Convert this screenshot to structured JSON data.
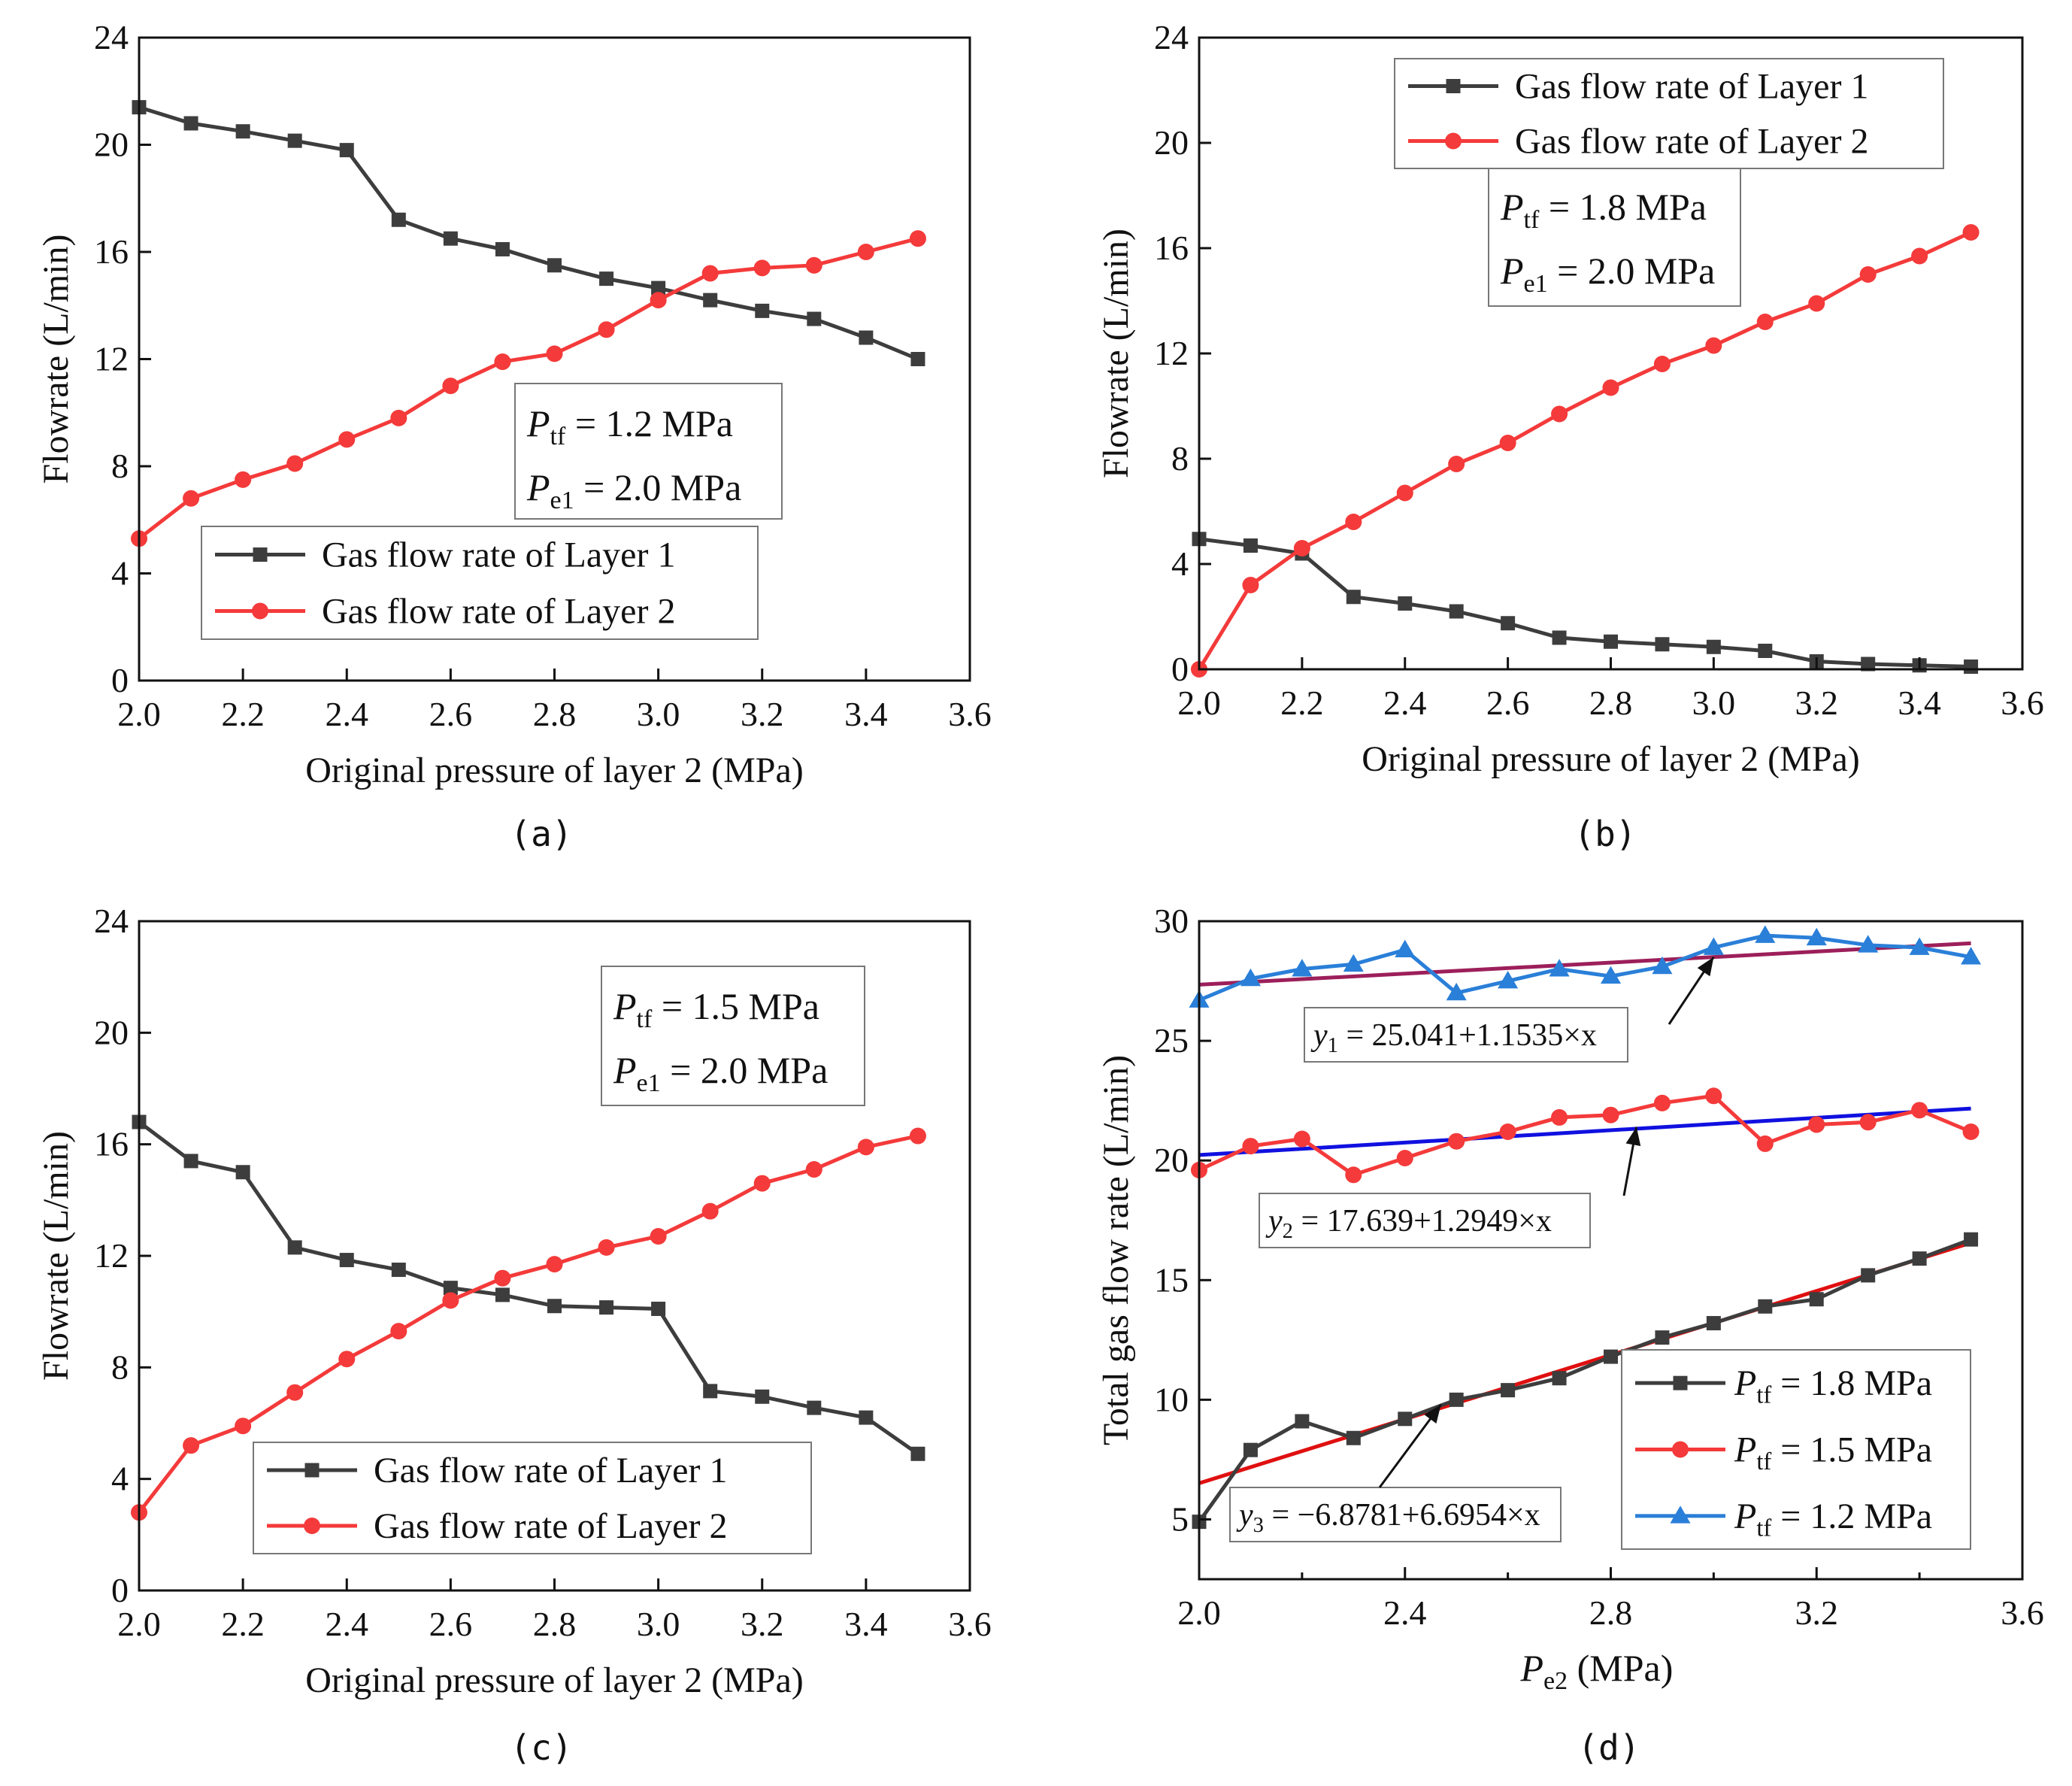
{
  "chart_data": [
    {
      "id": "a",
      "type": "line",
      "caption": "(a)",
      "xlabel": "Original pressure of layer 2 (MPa)",
      "ylabel": "Flowrate (L/min)",
      "xlim": [
        2.0,
        3.6
      ],
      "ylim": [
        0,
        24
      ],
      "xticks": [
        "2.0",
        "2.2",
        "2.4",
        "2.6",
        "2.8",
        "3.0",
        "3.2",
        "3.4",
        "3.6"
      ],
      "yticks": [
        "0",
        "4",
        "8",
        "12",
        "16",
        "20",
        "24"
      ],
      "x": [
        2.0,
        2.1,
        2.2,
        2.3,
        2.4,
        2.5,
        2.6,
        2.7,
        2.8,
        2.9,
        3.0,
        3.1,
        3.2,
        3.3,
        3.4,
        3.5
      ],
      "series": [
        {
          "name": "Gas flow rate of Layer 1",
          "color": "#3d3d3d",
          "marker": "square",
          "values": [
            21.4,
            20.8,
            20.5,
            20.15,
            19.8,
            17.2,
            16.5,
            16.1,
            15.5,
            15.0,
            14.65,
            14.2,
            13.8,
            13.5,
            12.8,
            12.0
          ]
        },
        {
          "name": "Gas flow rate of Layer 2",
          "color": "#f43a3a",
          "marker": "circle",
          "values": [
            5.3,
            6.8,
            7.5,
            8.1,
            9.0,
            9.8,
            11.0,
            11.9,
            12.2,
            13.1,
            14.2,
            15.2,
            15.4,
            15.5,
            16.0,
            16.5
          ]
        }
      ],
      "annotation": {
        "line1_var": "P",
        "line1_sub": "tf",
        "line1_value": " = 1.2 MPa",
        "line2_var": "P",
        "line2_sub": "e1",
        "line2_value": " = 2.0 MPa"
      }
    },
    {
      "id": "b",
      "type": "line",
      "caption": "(b)",
      "xlabel": "Original pressure of layer 2 (MPa)",
      "ylabel": "Flowrate (L/min)",
      "xlim": [
        2.0,
        3.6
      ],
      "ylim": [
        0,
        24
      ],
      "xticks": [
        "2.0",
        "2.2",
        "2.4",
        "2.6",
        "2.8",
        "3.0",
        "3.2",
        "3.4",
        "3.6"
      ],
      "yticks": [
        "0",
        "4",
        "8",
        "12",
        "16",
        "20",
        "24"
      ],
      "x": [
        2.0,
        2.1,
        2.2,
        2.3,
        2.4,
        2.5,
        2.6,
        2.7,
        2.8,
        2.9,
        3.0,
        3.1,
        3.2,
        3.3,
        3.4,
        3.5
      ],
      "series": [
        {
          "name": "Gas flow rate of Layer 1",
          "color": "#3d3d3d",
          "marker": "square",
          "values": [
            4.95,
            4.7,
            4.4,
            2.75,
            2.5,
            2.2,
            1.75,
            1.2,
            1.05,
            0.95,
            0.85,
            0.7,
            0.3,
            0.2,
            0.15,
            0.1
          ]
        },
        {
          "name": "Gas flow rate of Layer 2",
          "color": "#f43a3a",
          "marker": "circle",
          "values": [
            0.0,
            3.2,
            4.6,
            5.6,
            6.7,
            7.8,
            8.6,
            9.7,
            10.7,
            11.6,
            12.3,
            13.2,
            13.9,
            15.0,
            15.7,
            16.6
          ]
        }
      ],
      "annotation": {
        "line1_var": "P",
        "line1_sub": "tf",
        "line1_value": " = 1.8 MPa",
        "line2_var": "P",
        "line2_sub": "e1",
        "line2_value": " = 2.0 MPa"
      }
    },
    {
      "id": "c",
      "type": "line",
      "caption": "(c)",
      "xlabel": "Original pressure of layer 2 (MPa)",
      "ylabel": "Flowrate (L/min)",
      "xlim": [
        2.0,
        3.6
      ],
      "ylim": [
        0,
        24
      ],
      "xticks": [
        "2.0",
        "2.2",
        "2.4",
        "2.6",
        "2.8",
        "3.0",
        "3.2",
        "3.4",
        "3.6"
      ],
      "yticks": [
        "0",
        "4",
        "8",
        "12",
        "16",
        "20",
        "24"
      ],
      "x": [
        2.0,
        2.1,
        2.2,
        2.3,
        2.4,
        2.5,
        2.6,
        2.7,
        2.8,
        2.9,
        3.0,
        3.1,
        3.2,
        3.3,
        3.4,
        3.5
      ],
      "series": [
        {
          "name": "Gas flow rate of Layer 1",
          "color": "#3d3d3d",
          "marker": "square",
          "values": [
            16.8,
            15.4,
            15.0,
            12.3,
            11.85,
            11.5,
            10.85,
            10.6,
            10.2,
            10.15,
            10.1,
            7.15,
            6.95,
            6.55,
            6.2,
            4.9
          ]
        },
        {
          "name": "Gas flow rate of Layer 2",
          "color": "#f43a3a",
          "marker": "circle",
          "values": [
            2.8,
            5.2,
            5.9,
            7.1,
            8.3,
            9.3,
            10.4,
            11.2,
            11.7,
            12.3,
            12.7,
            13.6,
            14.6,
            15.1,
            15.9,
            16.3
          ]
        }
      ],
      "annotation": {
        "line1_var": "P",
        "line1_sub": "tf",
        "line1_value": " = 1.5 MPa",
        "line2_var": "P",
        "line2_sub": "e1",
        "line2_value": " = 2.0 MPa"
      }
    },
    {
      "id": "d",
      "type": "line",
      "caption": "(d)",
      "xlabel_var": "P",
      "xlabel_sub": "e2",
      "xlabel_unit": " (MPa)",
      "ylabel": "Total gas flow rate (L/min)",
      "xlim": [
        2.0,
        3.6
      ],
      "ylim": [
        2.5,
        30
      ],
      "xticks": [
        "2.0",
        "2.4",
        "2.8",
        "3.2",
        "3.6"
      ],
      "yticks": [
        "5",
        "10",
        "15",
        "20",
        "25",
        "30"
      ],
      "x": [
        2.0,
        2.1,
        2.2,
        2.3,
        2.4,
        2.5,
        2.6,
        2.7,
        2.8,
        2.9,
        3.0,
        3.1,
        3.2,
        3.3,
        3.4,
        3.5
      ],
      "series": [
        {
          "name": "P_tf = 1.8 MPa",
          "legend_var": "P",
          "legend_sub": "tf",
          "legend_value": " = 1.8 MPa",
          "color": "#3d3d3d",
          "marker": "square",
          "values": [
            4.9,
            7.9,
            9.1,
            8.4,
            9.2,
            10.0,
            10.4,
            10.9,
            11.8,
            12.6,
            13.2,
            13.9,
            14.2,
            15.2,
            15.9,
            16.7
          ]
        },
        {
          "name": "P_tf = 1.5 MPa",
          "legend_var": "P",
          "legend_sub": "tf",
          "legend_value": " = 1.5 MPa",
          "color": "#f43a3a",
          "marker": "circle",
          "values": [
            19.6,
            20.6,
            20.9,
            19.4,
            20.1,
            20.8,
            21.2,
            21.8,
            21.9,
            22.4,
            22.7,
            20.7,
            21.5,
            21.6,
            22.1,
            21.2
          ]
        },
        {
          "name": "P_tf = 1.2 MPa",
          "legend_var": "P",
          "legend_sub": "tf",
          "legend_value": " = 1.2 MPa",
          "color": "#2a7fd8",
          "marker": "triangle",
          "values": [
            26.7,
            27.6,
            28.0,
            28.2,
            28.8,
            27.0,
            27.5,
            28.0,
            27.7,
            28.1,
            28.9,
            29.4,
            29.3,
            29.0,
            28.9,
            28.5
          ]
        }
      ],
      "fits": [
        {
          "label": "y1 = 25.041+1.1535×x",
          "sub": "1",
          "text": " = 25.041+1.1535×x",
          "intercept": 25.041,
          "slope": 1.1535,
          "color": "#9c1f5a"
        },
        {
          "label": "y2 = 17.639+1.2949×x",
          "sub": "2",
          "text": " = 17.639+1.2949×x",
          "intercept": 17.639,
          "slope": 1.2949,
          "color": "#1010e0"
        },
        {
          "label": "y3 = −6.8781+6.6954×x",
          "sub": "3",
          "text": " = −6.8781+6.6954×x",
          "intercept": -6.8781,
          "slope": 6.6954,
          "color": "#e01010"
        }
      ]
    }
  ]
}
